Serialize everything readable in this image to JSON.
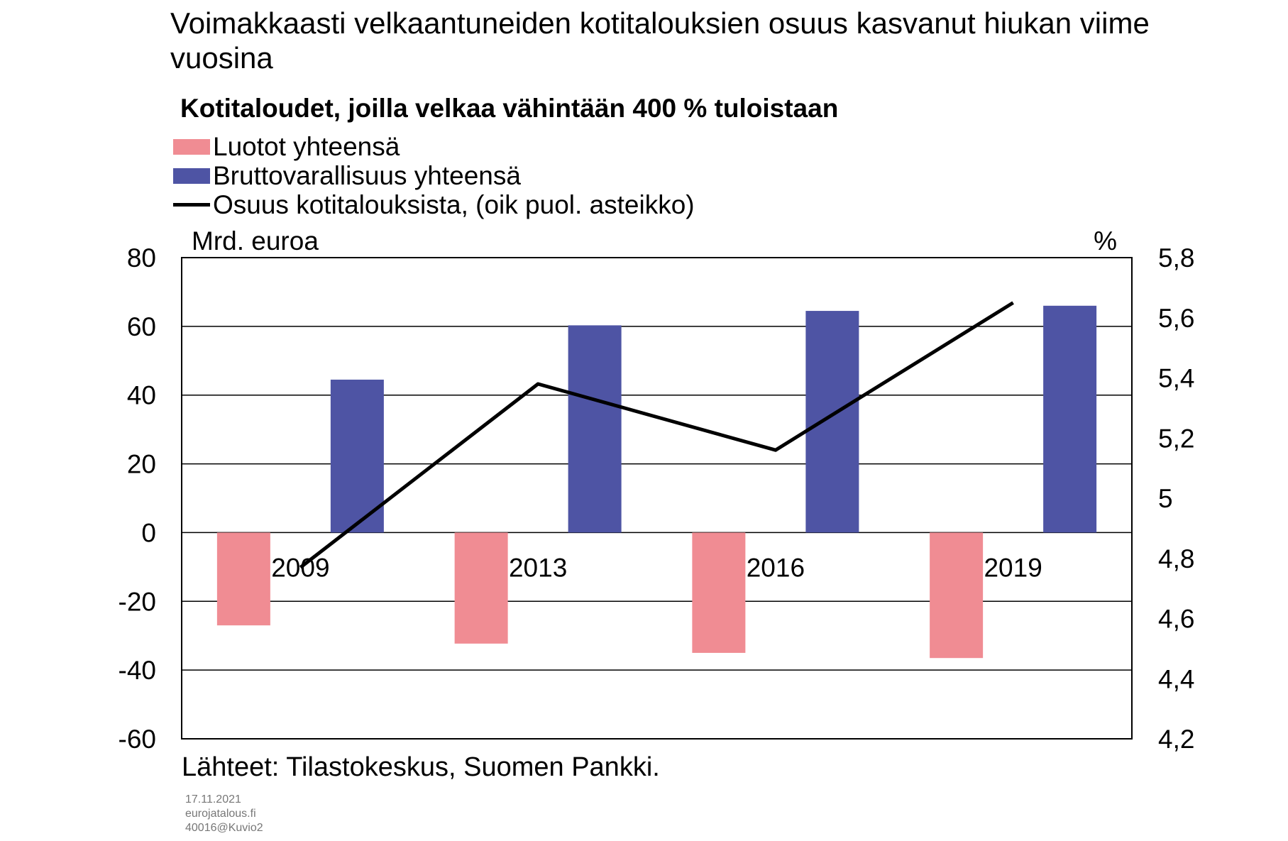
{
  "title": "Voimakkaasti velkaantuneiden kotitalouksien osuus kasvanut hiukan viime vuosina",
  "chart_data": {
    "type": "bar",
    "subtitle": "Kotitaloudet, joilla velkaa vähintään 400 % tuloistaan",
    "categories": [
      "2009",
      "2013",
      "2016",
      "2019"
    ],
    "series": [
      {
        "name": "Luotot yhteensä",
        "type": "bar",
        "axis": "left",
        "color": "#F08C93",
        "values": [
          -27,
          -32.3,
          -35,
          -36.5
        ]
      },
      {
        "name": "Bruttovarallisuus yhteensä",
        "type": "bar",
        "axis": "left",
        "color": "#4E54A4",
        "values": [
          44.5,
          60.3,
          64.5,
          66
        ]
      },
      {
        "name": "Osuus kotitalouksista,  (oik puol. asteikko)",
        "type": "line",
        "axis": "right",
        "color": "#000000",
        "values": [
          4.77,
          5.38,
          5.16,
          5.65
        ]
      }
    ],
    "ylabel_left": "Mrd. euroa",
    "ylabel_right": "%",
    "ylim_left": [
      -60,
      80
    ],
    "ylim_right": [
      4.2,
      5.8
    ],
    "yticks_left": [
      "80",
      "60",
      "40",
      "20",
      "0",
      "-20",
      "-40",
      "-60"
    ],
    "yticks_right": [
      "5,8",
      "5,6",
      "5,4",
      "5,2",
      "5",
      "4,8",
      "4,6",
      "4,4",
      "4,2"
    ],
    "grid": true,
    "legend_position": "top-left"
  },
  "source": "Lähteet: Tilastokeskus,  Suomen Pankki.",
  "meta": {
    "date": "17.11.2021",
    "site": "eurojatalous.fi",
    "code": "40016@Kuvio2"
  }
}
